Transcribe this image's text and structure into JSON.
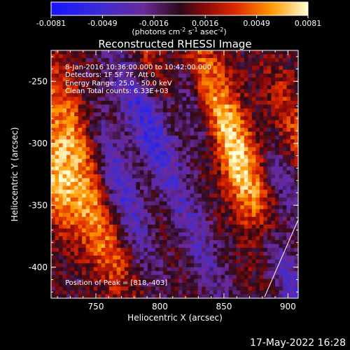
{
  "colorbar": {
    "ticks": [
      "-0.0081",
      "-0.0049",
      "-0.0016",
      "0.0016",
      "0.0049",
      "0.0081"
    ],
    "units_prefix": "(photons cm",
    "units_exp1": "-2",
    "units_mid": " s",
    "units_exp2": "-1",
    "units_suffix": " asec",
    "units_exp3": "-2",
    "units_close": ")"
  },
  "image": {
    "title": "Reconstructed RHESSI Image",
    "info_lines": [
      "8-Jan-2016 10:36:00.000 to 10:42:00.000",
      "Detectors: 1F 5F 7F, Att 0",
      "Energy Range: 25.0 - 50.0 keV",
      "Clean     Total counts: 6.33E+03"
    ],
    "peak_label": "Position of Peak = [818,-403]",
    "xlabel": "Heliocentric X (arcsec)",
    "ylabel": "Heliocentric Y (arcsec)",
    "x_ticks": [
      "750",
      "800",
      "850",
      "900"
    ],
    "y_ticks": [
      "-250",
      "-300",
      "-350",
      "-400"
    ],
    "x_range": [
      715,
      908
    ],
    "y_range": [
      -425,
      -225
    ]
  },
  "footer": {
    "timestamp": "17-May-2022 16:28"
  }
}
